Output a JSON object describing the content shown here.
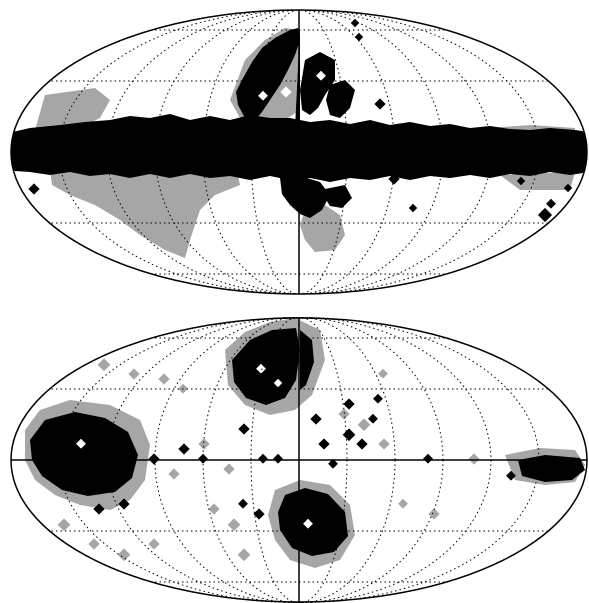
{
  "figure": {
    "panels": [
      {
        "id": "top",
        "description_printed": ""
      },
      {
        "id": "bottom",
        "description_printed": ""
      }
    ],
    "colors": {
      "mask_black": "#000000",
      "mask_gray": "#a6a6a6",
      "outline": "#000000",
      "grid": "#000000",
      "background": "#ffffff"
    },
    "projection": "mollweide",
    "graticule": {
      "meridians_deg": 30,
      "parallels_deg": 30,
      "style": "dotted"
    }
  }
}
